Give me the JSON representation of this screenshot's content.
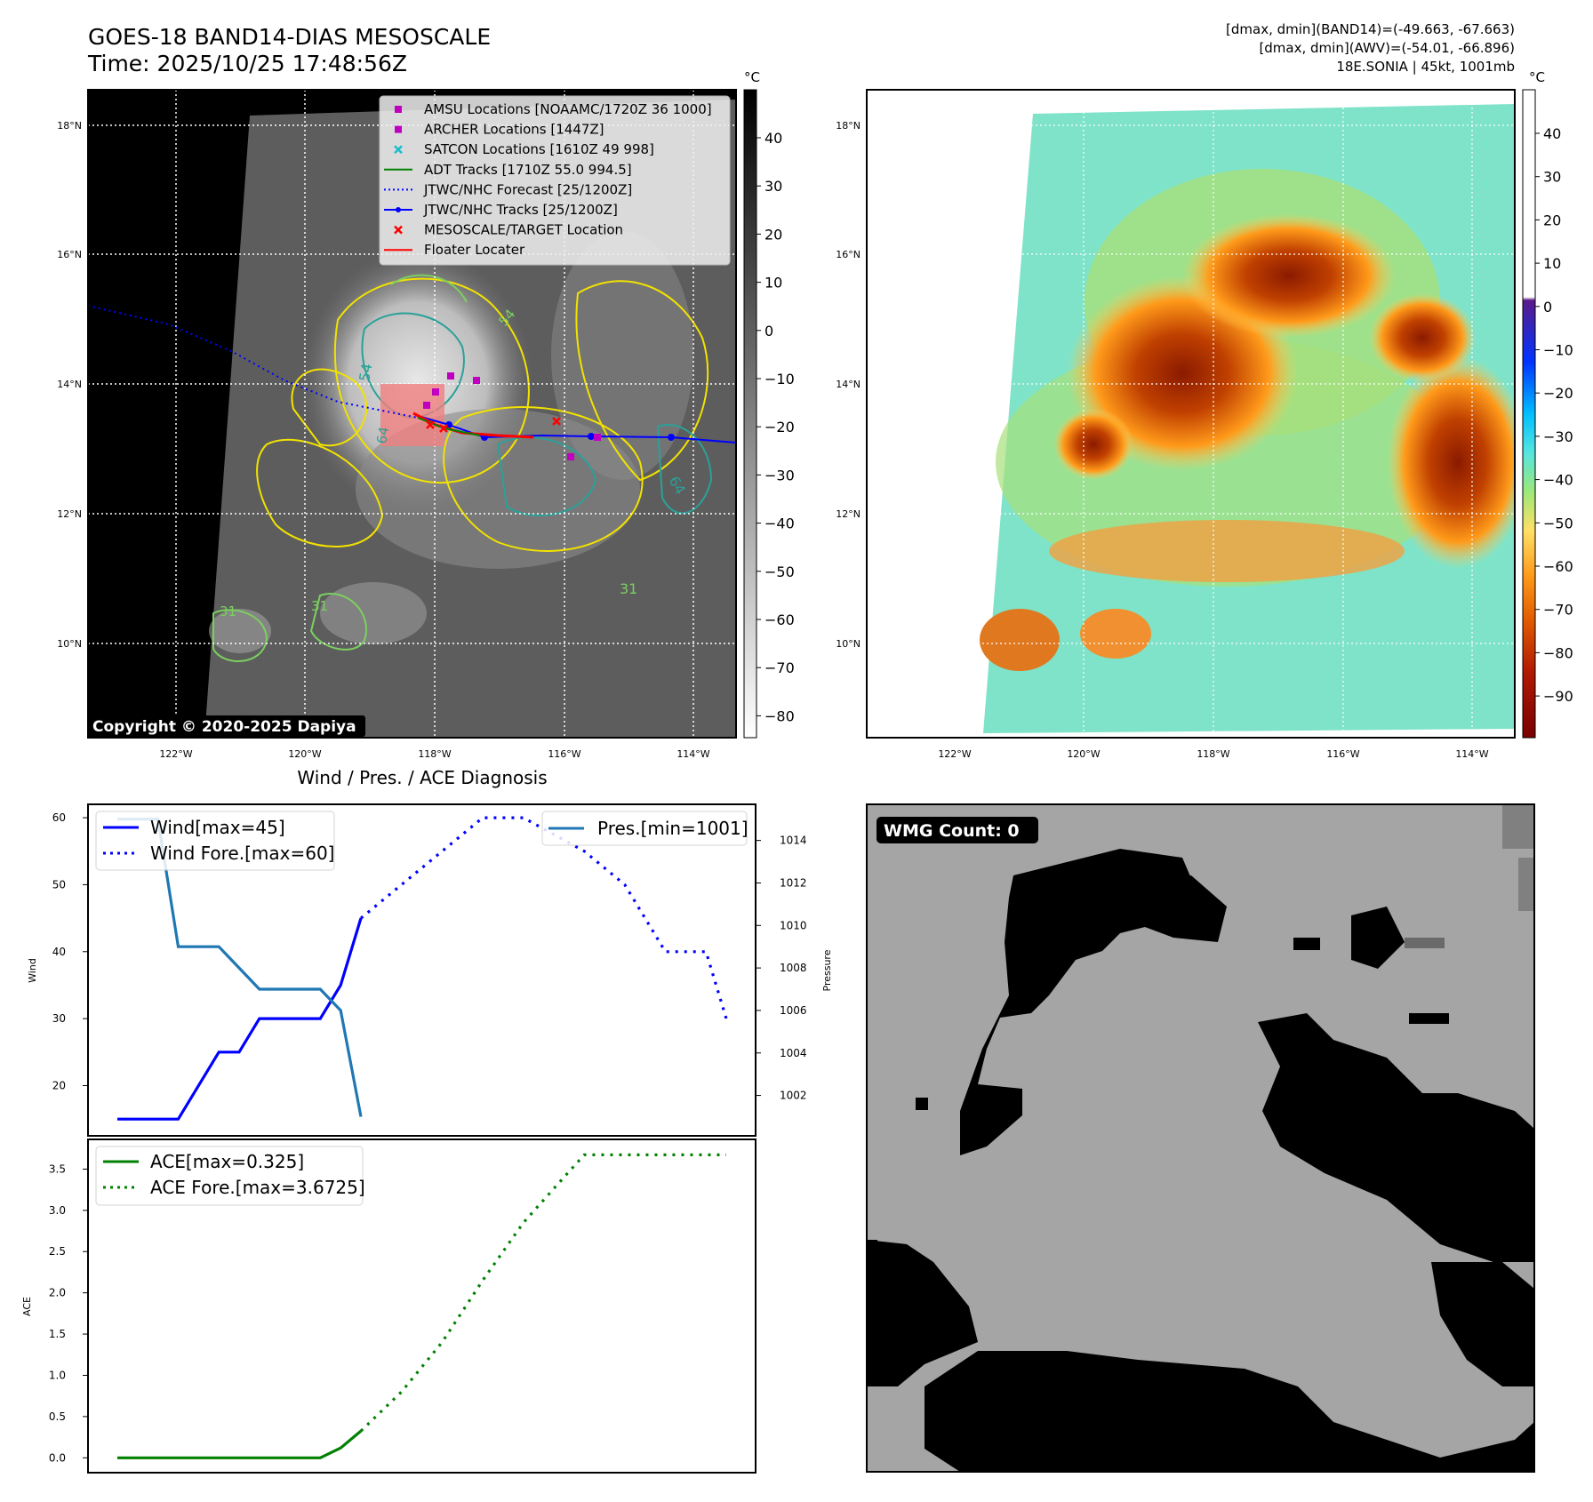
{
  "header": {
    "title_line1": "GOES-18 BAND14-DIAS MESOSCALE",
    "title_line2": "Time: 2025/10/25 17:48:56Z",
    "info_line1": "[dmax, dmin](BAND14)=(-49.663, -67.663)",
    "info_line2": "[dmax, dmin](AWV)=(-54.01, -66.896)",
    "info_line3": "18E.SONIA | 45kt, 1001mb"
  },
  "map_axes": {
    "lat_labels": [
      "18°N",
      "16°N",
      "14°N",
      "12°N",
      "10°N"
    ],
    "lon_labels": [
      "122°W",
      "120°W",
      "118°W",
      "116°W",
      "114°W"
    ]
  },
  "colorbar_left": {
    "unit": "°C",
    "ticks": [
      "40",
      "30",
      "20",
      "10",
      "0",
      "−10",
      "−20",
      "−30",
      "−40",
      "−50",
      "−60",
      "−70",
      "−80"
    ]
  },
  "colorbar_right": {
    "unit": "°C",
    "ticks": [
      "40",
      "30",
      "20",
      "10",
      "0",
      "−10",
      "−20",
      "−30",
      "−40",
      "−50",
      "−60",
      "−70",
      "−80",
      "−90"
    ]
  },
  "map_legend": [
    {
      "label": "AMSU Locations [NOAAMC/1720Z 36 1000]",
      "symbol": "square",
      "color": "#c000c0"
    },
    {
      "label": "ARCHER Locations [1447Z]",
      "symbol": "square",
      "color": "#c000c0"
    },
    {
      "label": "SATCON Locations [1610Z 49 998]",
      "symbol": "x",
      "color": "#17becf"
    },
    {
      "label": "ADT Tracks [1710Z 55.0 994.5]",
      "symbol": "line",
      "color": "#008000"
    },
    {
      "label": "JTWC/NHC Forecast [25/1200Z]",
      "symbol": "dotted",
      "color": "#0000ff"
    },
    {
      "label": "JTWC/NHC Tracks [25/1200Z]",
      "symbol": "line-dot",
      "color": "#0000ff"
    },
    {
      "label": "MESOSCALE/TARGET Location",
      "symbol": "x",
      "color": "#ff0000"
    },
    {
      "label": "Floater Locater",
      "symbol": "line",
      "color": "#ff0000"
    }
  ],
  "contour_labels": [
    "54",
    "64",
    "31",
    "31",
    "31",
    "54",
    "64"
  ],
  "copyright": "Copyright © 2020-2025 Dapiya",
  "wmg_label": "WMG Count: 0",
  "chart_data": [
    {
      "type": "line",
      "title": "Wind / Pres. / ACE Diagnosis",
      "ylabel": "Wind",
      "y2label": "Pressure",
      "ylim": [
        12.5,
        62
      ],
      "y2lim": [
        1000.1,
        1015.7
      ],
      "y_ticks": [
        20,
        30,
        40,
        50,
        60
      ],
      "y2_ticks": [
        1002,
        1004,
        1006,
        1008,
        1010,
        1012,
        1014
      ],
      "legend": [
        "Wind[max=45]",
        "Wind Fore.[max=60]",
        "Pres.[min=1001]"
      ],
      "series": [
        {
          "name": "Wind[max=45]",
          "style": "solid",
          "color": "#0000ff",
          "axis": "left",
          "points": [
            [
              0,
              15
            ],
            [
              3,
              15
            ],
            [
              5,
              25
            ],
            [
              6,
              25
            ],
            [
              7,
              30
            ],
            [
              10,
              30
            ],
            [
              11,
              35
            ],
            [
              12,
              45
            ]
          ]
        },
        {
          "name": "Wind Fore.[max=60]",
          "style": "dotted",
          "color": "#0000ff",
          "axis": "left",
          "points": [
            [
              12,
              45
            ],
            [
              18,
              60
            ],
            [
              20,
              60
            ],
            [
              23,
              55
            ],
            [
              25,
              50
            ],
            [
              27,
              40
            ],
            [
              29,
              40
            ],
            [
              30,
              30
            ]
          ]
        },
        {
          "name": "Pres.[min=1001]",
          "style": "solid",
          "color": "#1f77b4",
          "axis": "right",
          "points": [
            [
              0,
              1015
            ],
            [
              2,
              1015
            ],
            [
              3,
              1009
            ],
            [
              5,
              1009
            ],
            [
              7,
              1007
            ],
            [
              10,
              1007
            ],
            [
              11,
              1006
            ],
            [
              12,
              1001
            ]
          ]
        }
      ]
    },
    {
      "type": "line",
      "ylabel": "ACE",
      "ylim": [
        -0.18,
        3.86
      ],
      "y_ticks": [
        "0.0",
        "0.5",
        "1.0",
        "1.5",
        "2.0",
        "2.5",
        "3.0",
        "3.5"
      ],
      "legend": [
        "ACE[max=0.325]",
        "ACE Fore.[max=3.6725]"
      ],
      "series": [
        {
          "name": "ACE[max=0.325]",
          "style": "solid",
          "color": "#008000",
          "points": [
            [
              0,
              0
            ],
            [
              10,
              0
            ],
            [
              11,
              0.12
            ],
            [
              12,
              0.325
            ]
          ]
        },
        {
          "name": "ACE Fore.[max=3.6725]",
          "style": "dotted",
          "color": "#008000",
          "points": [
            [
              12,
              0.325
            ],
            [
              14,
              0.8
            ],
            [
              16,
              1.4
            ],
            [
              18,
              2.15
            ],
            [
              20,
              2.85
            ],
            [
              22,
              3.4
            ],
            [
              23,
              3.6725
            ],
            [
              30,
              3.6725
            ]
          ]
        }
      ]
    }
  ]
}
